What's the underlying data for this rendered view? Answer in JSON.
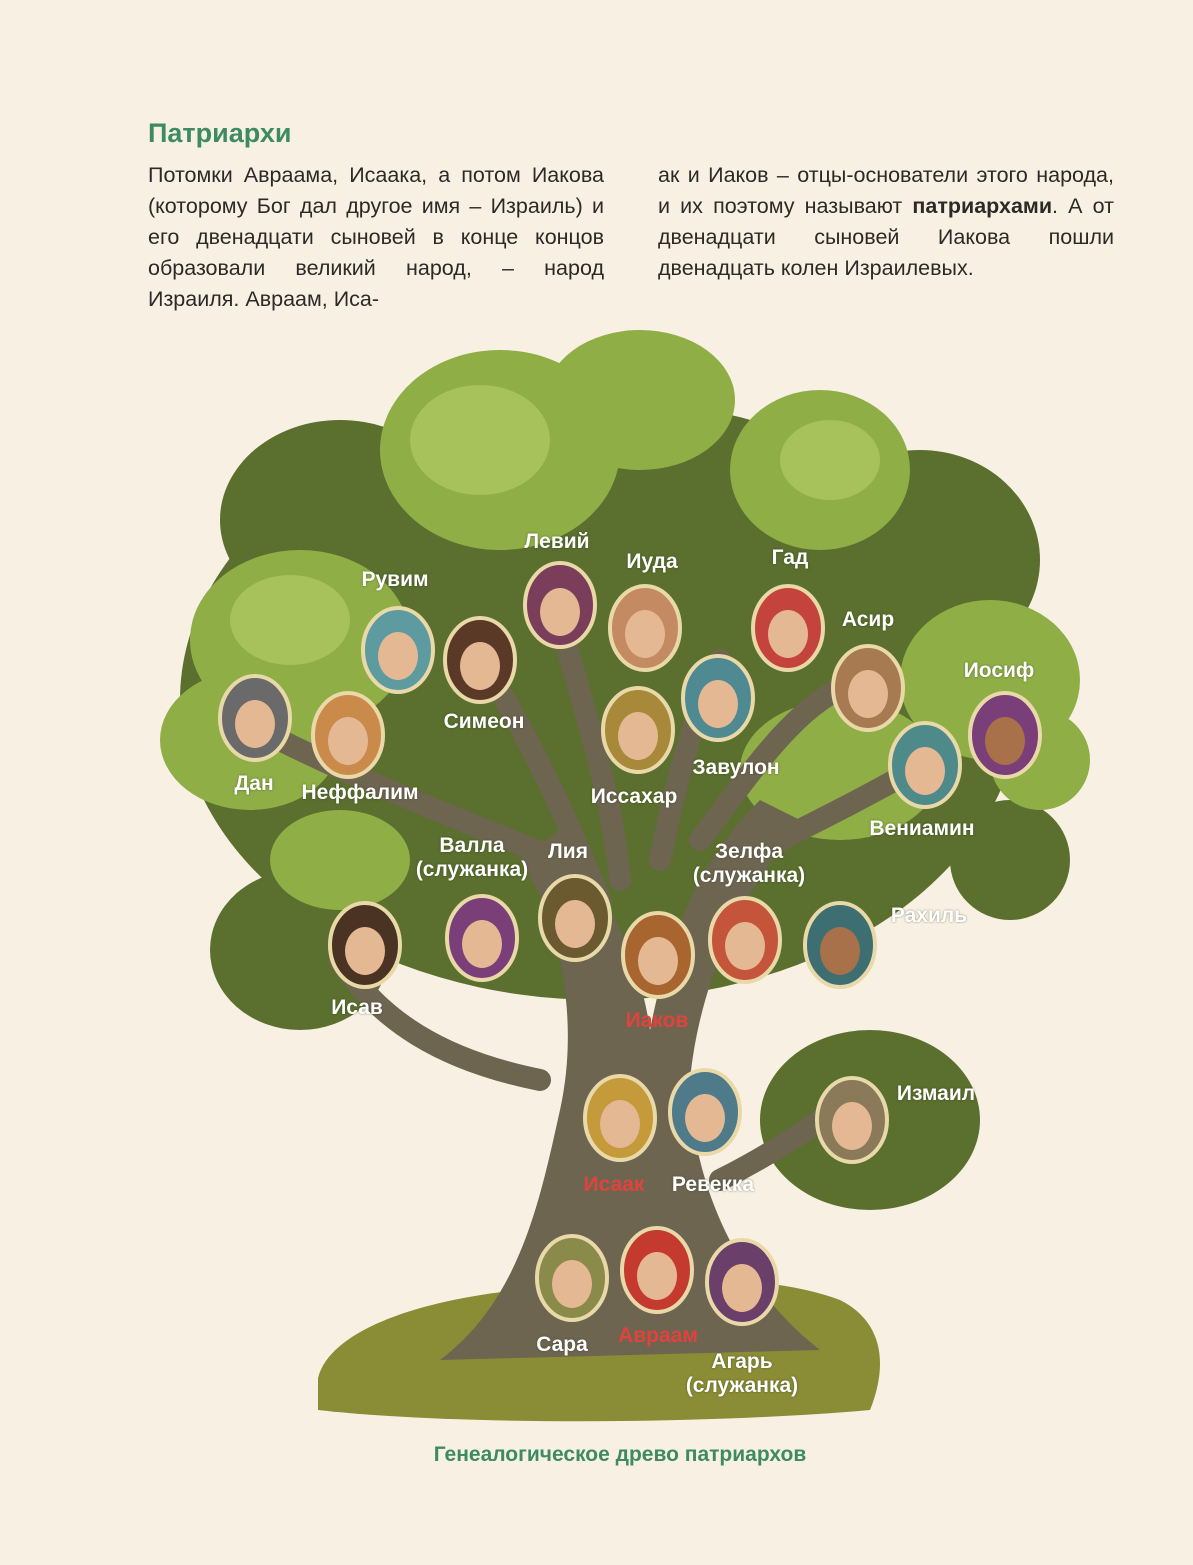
{
  "heading": "Патриархи",
  "paragraph": {
    "col1": "Потомки Авраама, Исаака, а потом Иакова (которому Бог дал другое имя – Израиль) и его двенадцати сыновей в конце концов образовали великий народ, – народ Израиля. Авраам, Иса-",
    "col2_before": "ак и Иаков – отцы-основатели этого народа, и их поэтому называют ",
    "col2_bold": "патриархами",
    "col2_after": ". А от двенадцати сыновей Иакова пошли двенадцать колен Израилевых."
  },
  "people": {
    "levi": "Левий",
    "ruvim": "Рувим",
    "iuda": "Иуда",
    "gad": "Гад",
    "asir": "Асир",
    "iosif": "Иосиф",
    "simeon": "Симеон",
    "dan": "Дан",
    "neffalim": "Неффалим",
    "issachar": "Иссахар",
    "zavulon": "Завулон",
    "veniamin": "Вениамин",
    "valla_name": "Валла",
    "valla_role": "(служанка)",
    "lia": "Лия",
    "zelfa_name": "Зелфа",
    "zelfa_role": "(служанка)",
    "rachil": "Рахиль",
    "isav": "Исав",
    "iakov": "Иаков",
    "izmail": "Измаил",
    "isaak": "Исаак",
    "revekka": "Ревекка",
    "sara": "Сара",
    "avraam": "Авраам",
    "agar_name": "Агарь",
    "agar_role": "(служанка)"
  },
  "caption": "Генеалогическое древо патриархов",
  "colors": {
    "heading_green": "#3e8a63",
    "patriarch_red": "#e0433c",
    "background": "#f8f1e3",
    "trunk": "#6e6551",
    "foliage_dark": "#5b6f2e",
    "foliage_light": "#93b148"
  }
}
